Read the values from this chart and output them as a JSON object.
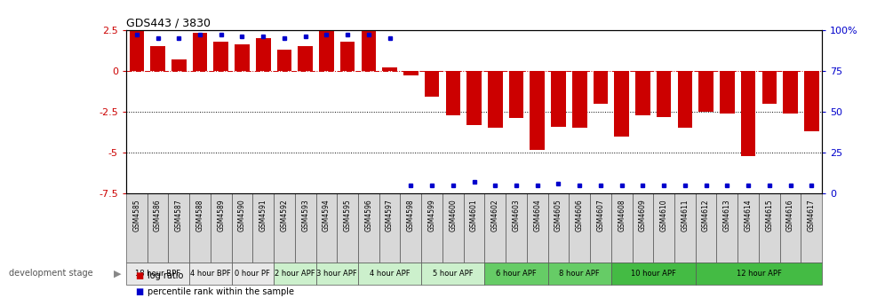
{
  "title": "GDS443 / 3830",
  "samples": [
    "GSM4585",
    "GSM4586",
    "GSM4587",
    "GSM4588",
    "GSM4589",
    "GSM4590",
    "GSM4591",
    "GSM4592",
    "GSM4593",
    "GSM4594",
    "GSM4595",
    "GSM4596",
    "GSM4597",
    "GSM4598",
    "GSM4599",
    "GSM4600",
    "GSM4601",
    "GSM4602",
    "GSM4603",
    "GSM4604",
    "GSM4605",
    "GSM4606",
    "GSM4607",
    "GSM4608",
    "GSM4609",
    "GSM4610",
    "GSM4611",
    "GSM4612",
    "GSM4613",
    "GSM4614",
    "GSM4615",
    "GSM4616",
    "GSM4617"
  ],
  "log_ratios": [
    2.4,
    1.5,
    0.7,
    2.3,
    1.8,
    1.6,
    2.0,
    1.3,
    1.5,
    2.4,
    1.8,
    2.4,
    0.2,
    -0.3,
    -1.6,
    -2.7,
    -3.3,
    -3.5,
    -2.9,
    -4.8,
    -3.4,
    -3.5,
    -2.0,
    -4.0,
    -2.7,
    -2.8,
    -3.5,
    -2.5,
    -2.6,
    -5.2,
    -2.0,
    -2.6,
    -3.7
  ],
  "percentile_ranks": [
    97,
    95,
    95,
    97,
    97,
    96,
    96,
    95,
    96,
    97,
    97,
    97,
    95,
    5,
    5,
    5,
    7,
    5,
    5,
    5,
    6,
    5,
    5,
    5,
    5,
    5,
    5,
    5,
    5,
    5,
    5,
    5,
    5
  ],
  "bar_color": "#cc0000",
  "pct_color": "#0000cc",
  "yticks_left": [
    2.5,
    0.0,
    -2.5,
    -5.0,
    -7.5
  ],
  "yticks_right": [
    100,
    75,
    50,
    25,
    0
  ],
  "ylim": [
    -7.5,
    2.5
  ],
  "hline_zero": 0.0,
  "hlines_dotted": [
    -2.5,
    -5.0
  ],
  "stages": [
    {
      "label": "18 hour BPF",
      "start": 0,
      "end": 3,
      "color": "#e8e8e8"
    },
    {
      "label": "4 hour BPF",
      "start": 3,
      "end": 5,
      "color": "#e8e8e8"
    },
    {
      "label": "0 hour PF",
      "start": 5,
      "end": 7,
      "color": "#e8e8e8"
    },
    {
      "label": "2 hour APF",
      "start": 7,
      "end": 9,
      "color": "#ccf0cc"
    },
    {
      "label": "3 hour APF",
      "start": 9,
      "end": 11,
      "color": "#ccf0cc"
    },
    {
      "label": "4 hour APF",
      "start": 11,
      "end": 14,
      "color": "#ccf0cc"
    },
    {
      "label": "5 hour APF",
      "start": 14,
      "end": 17,
      "color": "#ccf0cc"
    },
    {
      "label": "6 hour APF",
      "start": 17,
      "end": 20,
      "color": "#66cc66"
    },
    {
      "label": "8 hour APF",
      "start": 20,
      "end": 23,
      "color": "#66cc66"
    },
    {
      "label": "10 hour APF",
      "start": 23,
      "end": 27,
      "color": "#44bb44"
    },
    {
      "label": "12 hour APF",
      "start": 27,
      "end": 33,
      "color": "#44bb44"
    }
  ]
}
